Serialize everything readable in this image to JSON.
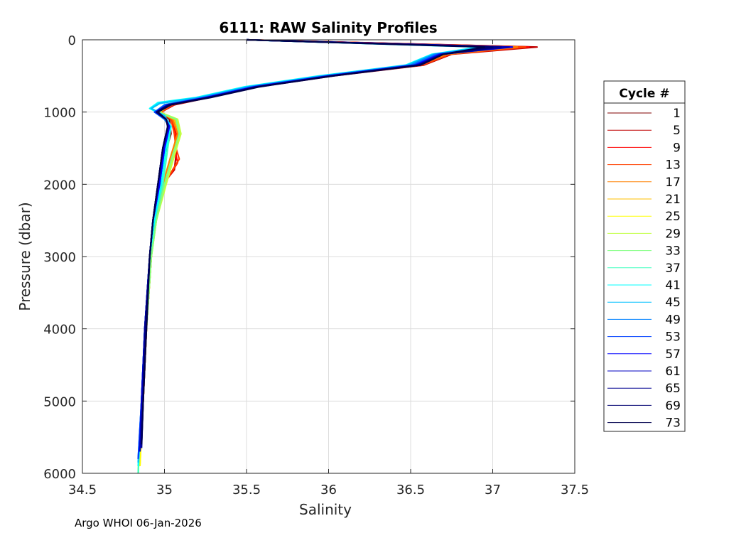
{
  "chart_data": {
    "type": "line",
    "title": "6111: RAW Salinity Profiles",
    "xlabel": "Salinity",
    "ylabel": "Pressure (dbar)",
    "xlim": [
      34.5,
      37.5
    ],
    "ylim": [
      0,
      6000
    ],
    "y_reversed": true,
    "grid": true,
    "x_ticks": [
      34.5,
      35,
      35.5,
      36,
      36.5,
      37,
      37.5
    ],
    "y_ticks": [
      0,
      1000,
      2000,
      3000,
      4000,
      5000,
      6000
    ],
    "x_tick_labels": [
      "34.5",
      "35",
      "35.5",
      "36",
      "36.5",
      "37",
      "37.5"
    ],
    "y_tick_labels": [
      "0",
      "1000",
      "2000",
      "3000",
      "4000",
      "5000",
      "6000"
    ],
    "legend_title": "Cycle #",
    "legend_position": "right-outside",
    "series": [
      {
        "name": "1",
        "color": "#800000",
        "pressure": [
          0,
          100,
          200,
          350,
          500,
          650,
          800,
          900,
          1000,
          1100,
          1300,
          1600,
          2000,
          2500,
          3000,
          4000,
          5000,
          5600
        ],
        "salinity": [
          35.5,
          37.25,
          36.72,
          36.55,
          36.0,
          35.55,
          35.25,
          35.05,
          34.97,
          35.03,
          35.04,
          35.0,
          34.96,
          34.93,
          34.91,
          34.89,
          34.87,
          34.85
        ]
      },
      {
        "name": "5",
        "color": "#c00000",
        "pressure": [
          0,
          100,
          200,
          350,
          500,
          650,
          800,
          900,
          1000,
          1100,
          1300,
          1600,
          1800,
          2000,
          2500,
          3000,
          4000,
          5000,
          5700
        ],
        "salinity": [
          35.5,
          37.27,
          36.75,
          36.58,
          36.03,
          35.57,
          35.27,
          35.06,
          34.98,
          35.05,
          35.08,
          35.07,
          35.06,
          34.99,
          34.94,
          34.92,
          34.89,
          34.87,
          34.85
        ]
      },
      {
        "name": "9",
        "color": "#ff0000",
        "pressure": [
          0,
          100,
          200,
          350,
          500,
          650,
          800,
          900,
          1000,
          1100,
          1300,
          1500,
          1700,
          1850,
          2000,
          2500,
          3000,
          4000,
          5000,
          5700
        ],
        "salinity": [
          35.5,
          37.22,
          36.73,
          36.56,
          36.02,
          35.56,
          35.26,
          35.05,
          34.98,
          35.04,
          35.07,
          35.06,
          35.08,
          35.04,
          34.99,
          34.94,
          34.92,
          34.89,
          34.87,
          34.85
        ]
      },
      {
        "name": "13",
        "color": "#ff4000",
        "pressure": [
          0,
          100,
          200,
          350,
          500,
          650,
          800,
          900,
          1000,
          1100,
          1300,
          1500,
          1650,
          1800,
          2000,
          2500,
          3000,
          4000,
          5000,
          5800
        ],
        "salinity": [
          35.5,
          37.2,
          36.74,
          36.57,
          36.01,
          35.55,
          35.25,
          35.05,
          34.98,
          35.04,
          35.06,
          35.07,
          35.09,
          35.05,
          35.0,
          34.94,
          34.92,
          34.89,
          34.87,
          34.85
        ]
      },
      {
        "name": "17",
        "color": "#ff8000",
        "pressure": [
          0,
          100,
          200,
          350,
          500,
          650,
          800,
          900,
          1000,
          1100,
          1300,
          1600,
          2000,
          2500,
          3000,
          4000,
          5000,
          5800
        ],
        "salinity": [
          35.5,
          37.15,
          36.72,
          36.55,
          36.0,
          35.54,
          35.24,
          35.04,
          34.97,
          35.05,
          35.08,
          35.04,
          34.99,
          34.94,
          34.92,
          34.89,
          34.87,
          34.85
        ]
      },
      {
        "name": "21",
        "color": "#ffbf00",
        "pressure": [
          0,
          100,
          200,
          350,
          500,
          650,
          800,
          900,
          1000,
          1100,
          1300,
          1600,
          2000,
          2500,
          3000,
          4000,
          5000,
          5900
        ],
        "salinity": [
          35.5,
          37.1,
          36.7,
          36.54,
          35.99,
          35.53,
          35.23,
          35.03,
          34.97,
          35.06,
          35.09,
          35.05,
          35.0,
          34.95,
          34.92,
          34.89,
          34.87,
          34.85
        ]
      },
      {
        "name": "25",
        "color": "#ffff00",
        "pressure": [
          0,
          100,
          200,
          350,
          500,
          650,
          800,
          900,
          1000,
          1100,
          1300,
          1600,
          2000,
          2500,
          3000,
          4000,
          5000,
          5900
        ],
        "salinity": [
          35.5,
          37.05,
          36.69,
          36.53,
          35.98,
          35.52,
          35.22,
          35.03,
          34.97,
          35.07,
          35.1,
          35.06,
          35.01,
          34.95,
          34.92,
          34.89,
          34.87,
          34.85
        ]
      },
      {
        "name": "29",
        "color": "#c0ff40",
        "pressure": [
          0,
          100,
          200,
          350,
          500,
          650,
          800,
          900,
          1000,
          1100,
          1300,
          1600,
          2000,
          2500,
          3000,
          4000,
          5000,
          6000
        ],
        "salinity": [
          35.5,
          37.0,
          36.68,
          36.52,
          35.97,
          35.51,
          35.21,
          35.02,
          34.97,
          35.08,
          35.1,
          35.06,
          35.01,
          34.95,
          34.92,
          34.89,
          34.86,
          34.84
        ]
      },
      {
        "name": "33",
        "color": "#80ff80",
        "pressure": [
          0,
          100,
          200,
          350,
          500,
          650,
          800,
          900,
          1000,
          1100,
          1300,
          1600,
          2000,
          2500,
          3000,
          4000,
          5000,
          6000
        ],
        "salinity": [
          35.5,
          36.98,
          36.66,
          36.5,
          35.96,
          35.5,
          35.2,
          35.0,
          34.96,
          35.07,
          35.09,
          35.05,
          35.0,
          34.95,
          34.92,
          34.89,
          34.86,
          34.84
        ]
      },
      {
        "name": "37",
        "color": "#40ffbf",
        "pressure": [
          0,
          100,
          200,
          350,
          500,
          650,
          800,
          870,
          950,
          1050,
          1200,
          1500,
          2000,
          2500,
          3000,
          4000,
          5000,
          6000
        ],
        "salinity": [
          35.5,
          36.95,
          36.64,
          36.48,
          35.95,
          35.5,
          35.2,
          34.98,
          34.92,
          35.0,
          35.04,
          35.02,
          34.99,
          34.94,
          34.91,
          34.88,
          34.86,
          34.84
        ]
      },
      {
        "name": "41",
        "color": "#00ffff",
        "pressure": [
          0,
          100,
          200,
          350,
          500,
          650,
          800,
          870,
          950,
          1050,
          1200,
          1500,
          2000,
          2500,
          3000,
          4000,
          5000,
          5900
        ],
        "salinity": [
          35.5,
          36.92,
          36.63,
          36.47,
          35.94,
          35.49,
          35.19,
          34.96,
          34.91,
          35.0,
          35.04,
          35.01,
          34.98,
          34.94,
          34.91,
          34.88,
          34.86,
          34.84
        ]
      },
      {
        "name": "45",
        "color": "#00bfff",
        "pressure": [
          0,
          100,
          200,
          350,
          500,
          650,
          800,
          880,
          950,
          1050,
          1200,
          1500,
          2000,
          2500,
          3000,
          4000,
          5000,
          5850
        ],
        "salinity": [
          35.5,
          36.95,
          36.64,
          36.48,
          35.96,
          35.51,
          35.21,
          34.97,
          34.92,
          35.0,
          35.03,
          35.0,
          34.97,
          34.93,
          34.91,
          34.88,
          34.86,
          34.84
        ]
      },
      {
        "name": "49",
        "color": "#0080ff",
        "pressure": [
          0,
          100,
          200,
          350,
          500,
          650,
          800,
          900,
          1000,
          1100,
          1200,
          1500,
          2000,
          2500,
          3000,
          4000,
          5000,
          5800
        ],
        "salinity": [
          35.5,
          37.0,
          36.65,
          36.5,
          35.98,
          35.53,
          35.23,
          35.0,
          34.94,
          35.0,
          35.03,
          35.0,
          34.97,
          34.93,
          34.91,
          34.88,
          34.86,
          34.84
        ]
      },
      {
        "name": "53",
        "color": "#0040ff",
        "pressure": [
          0,
          100,
          200,
          350,
          500,
          650,
          800,
          900,
          1000,
          1100,
          1200,
          1500,
          2000,
          2500,
          3000,
          4000,
          5000,
          5800
        ],
        "salinity": [
          35.5,
          37.08,
          36.67,
          36.52,
          36.0,
          35.55,
          35.25,
          35.01,
          34.94,
          35.01,
          35.03,
          35.0,
          34.97,
          34.93,
          34.91,
          34.88,
          34.86,
          34.84
        ]
      },
      {
        "name": "57",
        "color": "#0000ff",
        "pressure": [
          0,
          100,
          200,
          350,
          500,
          650,
          800,
          900,
          1000,
          1100,
          1200,
          1500,
          2000,
          2500,
          3000,
          4000,
          5000,
          5700
        ],
        "salinity": [
          35.5,
          37.12,
          36.68,
          36.53,
          36.0,
          35.55,
          35.25,
          35.02,
          34.95,
          35.01,
          35.03,
          35.0,
          34.97,
          34.93,
          34.91,
          34.88,
          34.86,
          34.85
        ]
      },
      {
        "name": "61",
        "color": "#0000c0",
        "pressure": [
          0,
          100,
          200,
          350,
          500,
          650,
          800,
          900,
          1000,
          1100,
          1200,
          1500,
          2000,
          2500,
          3000,
          4000,
          5000,
          5700
        ],
        "salinity": [
          35.5,
          37.1,
          36.69,
          36.54,
          36.01,
          35.56,
          35.26,
          35.02,
          34.95,
          35.01,
          35.02,
          34.99,
          34.96,
          34.93,
          34.91,
          34.88,
          34.86,
          34.85
        ]
      },
      {
        "name": "65",
        "color": "#000090",
        "pressure": [
          0,
          100,
          200,
          350,
          500,
          650,
          800,
          900,
          1000,
          1100,
          1200,
          1500,
          2000,
          2500,
          3000,
          4000,
          5000,
          5650
        ],
        "salinity": [
          35.5,
          37.05,
          36.7,
          36.55,
          36.02,
          35.57,
          35.27,
          35.03,
          34.95,
          35.01,
          35.02,
          34.99,
          34.96,
          34.93,
          34.91,
          34.88,
          34.87,
          34.86
        ]
      },
      {
        "name": "69",
        "color": "#000070",
        "pressure": [
          0,
          100,
          200,
          350,
          500,
          650,
          800,
          900,
          1000,
          1100,
          1200,
          1500,
          2000,
          2500,
          3000,
          4000,
          5000,
          5600
        ],
        "salinity": [
          35.5,
          37.0,
          36.7,
          36.55,
          36.02,
          35.57,
          35.27,
          35.03,
          34.95,
          35.01,
          35.02,
          34.99,
          34.96,
          34.93,
          34.91,
          34.89,
          34.87,
          34.86
        ]
      },
      {
        "name": "73",
        "color": "#00004d",
        "pressure": [
          0,
          100,
          200,
          350,
          500,
          650,
          800,
          900,
          1000,
          1100,
          1200,
          1500,
          2000,
          2500,
          3000,
          4000,
          5000,
          5600
        ],
        "salinity": [
          35.5,
          36.95,
          36.7,
          36.56,
          36.03,
          35.58,
          35.28,
          35.04,
          34.96,
          35.01,
          35.02,
          34.99,
          34.96,
          34.93,
          34.91,
          34.89,
          34.87,
          34.86
        ]
      }
    ]
  },
  "footer": {
    "text": "Argo WHOI 06-Jan-2026"
  }
}
